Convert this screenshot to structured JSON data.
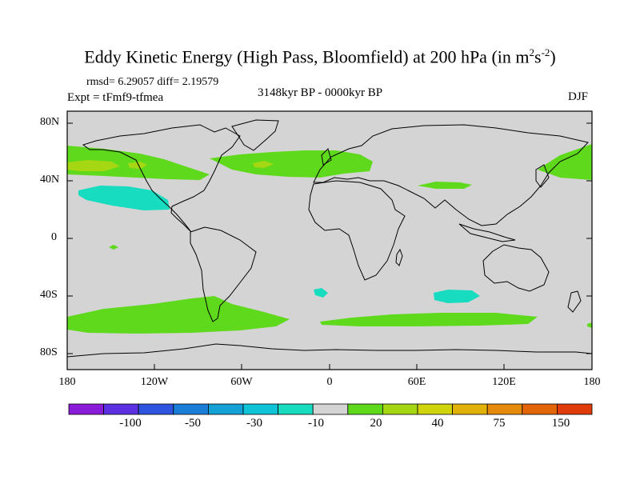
{
  "title": {
    "main": "Eddy Kinetic Energy (High Pass, Bloomfield) at 200 hPa (in m",
    "sup1": "2",
    "mid": "s",
    "sup2": "-2",
    "end": ")"
  },
  "subtitle": {
    "stats": "rmsd= 6.29057 diff= 2.19579",
    "experiment": "Expt = tFmf9-tfmea",
    "period": "3148kyr BP - 0000kyr BP",
    "season": "DJF"
  },
  "axes": {
    "y_labels": [
      "80N",
      "40N",
      "0",
      "40S",
      "80S"
    ],
    "x_labels": [
      "180",
      "120W",
      "60W",
      "0",
      "60E",
      "120E",
      "180"
    ]
  },
  "colorbar": {
    "colors": [
      "#8a1bd8",
      "#5a30e0",
      "#2f55e0",
      "#1a7ed8",
      "#14a2d6",
      "#10c4d8",
      "#18dcc0",
      "#d4d4d4",
      "#5ed91c",
      "#a5d812",
      "#cfd40c",
      "#e1b20a",
      "#e68a0b",
      "#e26508",
      "#e03c0a"
    ],
    "labels": [
      "-100",
      "-50",
      "-30",
      "-10",
      "20",
      "40",
      "75",
      "150"
    ]
  },
  "map": {
    "ocean_color": "#d4d4d4",
    "positive_color": "#5ed91c",
    "strong_color": "#a5d812",
    "negative_color": "#18dcc0"
  }
}
